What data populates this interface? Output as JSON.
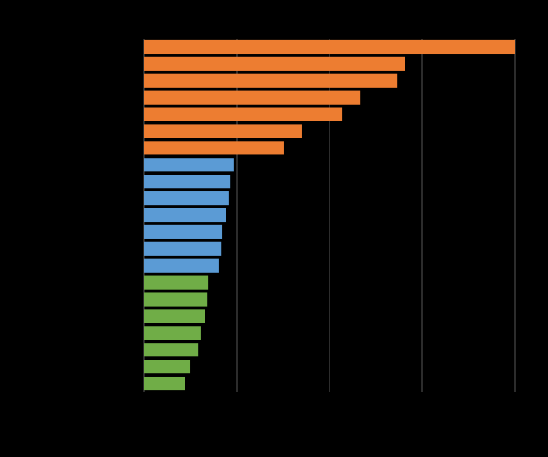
{
  "chart_data": {
    "type": "bar",
    "orientation": "horizontal",
    "categories": [
      null,
      null,
      null,
      null,
      null,
      null,
      null,
      null,
      null,
      null,
      null,
      null,
      null,
      null,
      null,
      null,
      null,
      null,
      null,
      null,
      null
    ],
    "values": [
      100,
      70.4,
      68.3,
      58.3,
      53.5,
      42.6,
      37.6,
      24.1,
      23.3,
      22.8,
      22.0,
      21.1,
      20.7,
      20.2,
      17.2,
      17.0,
      16.5,
      15.2,
      14.6,
      12.4,
      10.9
    ],
    "colors": [
      "#ed7d31",
      "#ed7d31",
      "#ed7d31",
      "#ed7d31",
      "#ed7d31",
      "#ed7d31",
      "#ed7d31",
      "#5b9bd5",
      "#5b9bd5",
      "#5b9bd5",
      "#5b9bd5",
      "#5b9bd5",
      "#5b9bd5",
      "#5b9bd5",
      "#70ad47",
      "#70ad47",
      "#70ad47",
      "#70ad47",
      "#70ad47",
      "#70ad47",
      "#70ad47"
    ],
    "xlim": [
      0,
      100
    ],
    "xticks": [
      0,
      25,
      50,
      75,
      100
    ],
    "grid": true
  }
}
